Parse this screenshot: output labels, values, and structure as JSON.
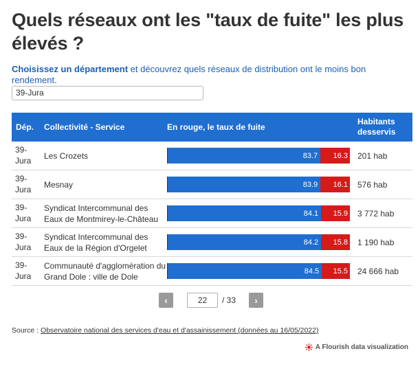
{
  "header": {
    "title": "Quels réseaux ont les \"taux de fuite\" les plus élevés ?",
    "subtitle_bold": "Choisissez un département",
    "subtitle_rest": " et découvrez quels réseaux de distribution ont le moins bon rendement."
  },
  "filter": {
    "selected": "39-Jura"
  },
  "table": {
    "columns": {
      "dep": "Dép.",
      "collectivite": "Collectivité - Service",
      "fuite": "En rouge, le taux de fuite",
      "habitants": "Habitants desservis"
    },
    "rows": [
      {
        "dep": "39-Jura",
        "collectivite": "Les Crozets",
        "rendement": 83.7,
        "fuite": 16.3,
        "rendement_label": "83.7",
        "fuite_label": "16.3",
        "habitants": "201 hab"
      },
      {
        "dep": "39-Jura",
        "collectivite": "Mesnay",
        "rendement": 83.9,
        "fuite": 16.1,
        "rendement_label": "83.9",
        "fuite_label": "16.1",
        "habitants": "576 hab"
      },
      {
        "dep": "39-Jura",
        "collectivite": "Syndicat Intercommunal des Eaux de Montmirey-le-Château",
        "rendement": 84.1,
        "fuite": 15.9,
        "rendement_label": "84.1",
        "fuite_label": "15.9",
        "habitants": "3 772 hab"
      },
      {
        "dep": "39-Jura",
        "collectivite": "Syndicat Intercommunal des Eaux de la Région d'Orgelet",
        "rendement": 84.2,
        "fuite": 15.8,
        "rendement_label": "84.2",
        "fuite_label": "15.8",
        "habitants": "1 190 hab"
      },
      {
        "dep": "39-Jura",
        "collectivite": "Communauté d'agglomération du Grand Dole : ville de Dole",
        "rendement": 84.5,
        "fuite": 15.5,
        "rendement_label": "84.5",
        "fuite_label": "15.5",
        "habitants": "24 666 hab"
      }
    ]
  },
  "pagination": {
    "prev_icon": "chevron-left",
    "prev_label": "‹",
    "next_icon": "chevron-right",
    "next_label": "›",
    "current_page": "22",
    "total_label": "/ 33"
  },
  "footer": {
    "source_prefix": "Source : ",
    "source_link": "Observatoire national des services d'eau et d'assainissement (données au 16/05/2022)",
    "flourish_label": "A Flourish data visualization"
  },
  "colors": {
    "accent_blue": "#1f6ed0",
    "leak_red": "#d51a1a",
    "subtitle_blue": "#1a5fb4"
  }
}
